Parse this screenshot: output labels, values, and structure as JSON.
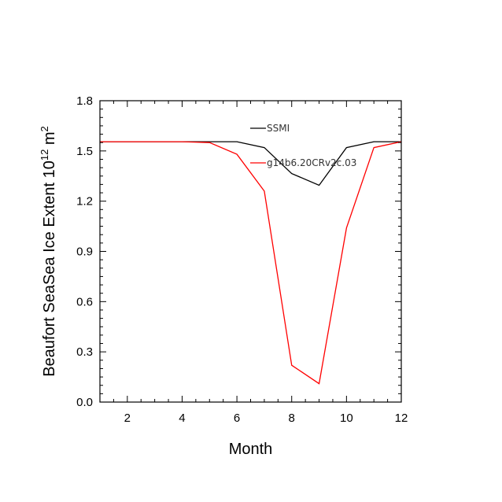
{
  "chart_data": {
    "type": "line",
    "title": "",
    "xlabel": "Month",
    "ylabel_main": "Beaufort SeaSea Ice Extent 10",
    "ylabel_sup1": "12",
    "ylabel_mid": " m",
    "ylabel_sup2": "2",
    "xlim": [
      1,
      12
    ],
    "ylim": [
      0.0,
      1.8
    ],
    "xticks": [
      2,
      4,
      6,
      8,
      10,
      12
    ],
    "xtick_labels": [
      "2",
      "4",
      "6",
      "8",
      "10",
      "12"
    ],
    "yticks": [
      0.0,
      0.3,
      0.6,
      0.9,
      1.2,
      1.5,
      1.8
    ],
    "ytick_labels": [
      "0.0",
      "0.3",
      "0.6",
      "0.9",
      "1.2",
      "1.5",
      "1.8"
    ],
    "grid": false,
    "legend_position": "top-center",
    "x": [
      1,
      2,
      3,
      4,
      5,
      6,
      7,
      8,
      9,
      10,
      11,
      12
    ],
    "series": [
      {
        "name": "SSMI",
        "color": "#000000",
        "values": [
          1.555,
          1.555,
          1.555,
          1.555,
          1.555,
          1.555,
          1.52,
          1.365,
          1.295,
          1.52,
          1.555,
          1.555
        ]
      },
      {
        "name": "g14b6.20CRv2c.03",
        "color": "#ff0000",
        "values": [
          1.555,
          1.555,
          1.555,
          1.555,
          1.55,
          1.48,
          1.26,
          0.22,
          0.11,
          1.04,
          1.52,
          1.555
        ]
      }
    ]
  }
}
